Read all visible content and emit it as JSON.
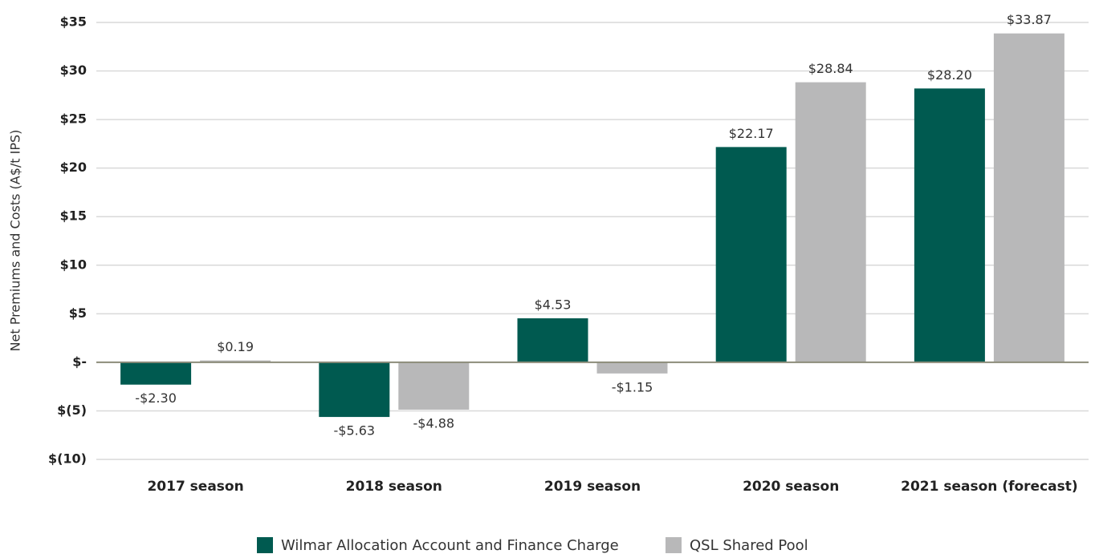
{
  "chart_data": {
    "type": "bar",
    "y_label": "Net Premiums and Costs (A$/t IPS)",
    "categories": [
      "2017 season",
      "2018 season",
      "2019 season",
      "2020 season",
      "2021 season (forecast)"
    ],
    "series": [
      {
        "name": "Wilmar Allocation Account and Finance Charge",
        "color": "#005a50",
        "values": [
          -2.3,
          -5.63,
          4.53,
          22.17,
          28.2
        ],
        "value_labels": [
          "-$2.30",
          "-$5.63",
          "$4.53",
          "$22.17",
          "$28.20"
        ]
      },
      {
        "name": "QSL Shared Pool",
        "color": "#b8b8b9",
        "values": [
          0.19,
          -4.88,
          -1.15,
          28.84,
          33.87
        ],
        "value_labels": [
          "$0.19",
          "-$4.88",
          "-$1.15",
          "$28.84",
          "$33.87"
        ]
      }
    ],
    "ylim": [
      -10,
      35
    ],
    "yticks": [
      {
        "value": -10,
        "label": "$(10)"
      },
      {
        "value": -5,
        "label": "$(5)"
      },
      {
        "value": 0,
        "label": "$-"
      },
      {
        "value": 5,
        "label": "$5"
      },
      {
        "value": 10,
        "label": "$10"
      },
      {
        "value": 15,
        "label": "$15"
      },
      {
        "value": 20,
        "label": "$20"
      },
      {
        "value": 25,
        "label": "$25"
      },
      {
        "value": 30,
        "label": "$30"
      },
      {
        "value": 35,
        "label": "$35"
      }
    ],
    "grid": true,
    "legend": "bottom"
  }
}
